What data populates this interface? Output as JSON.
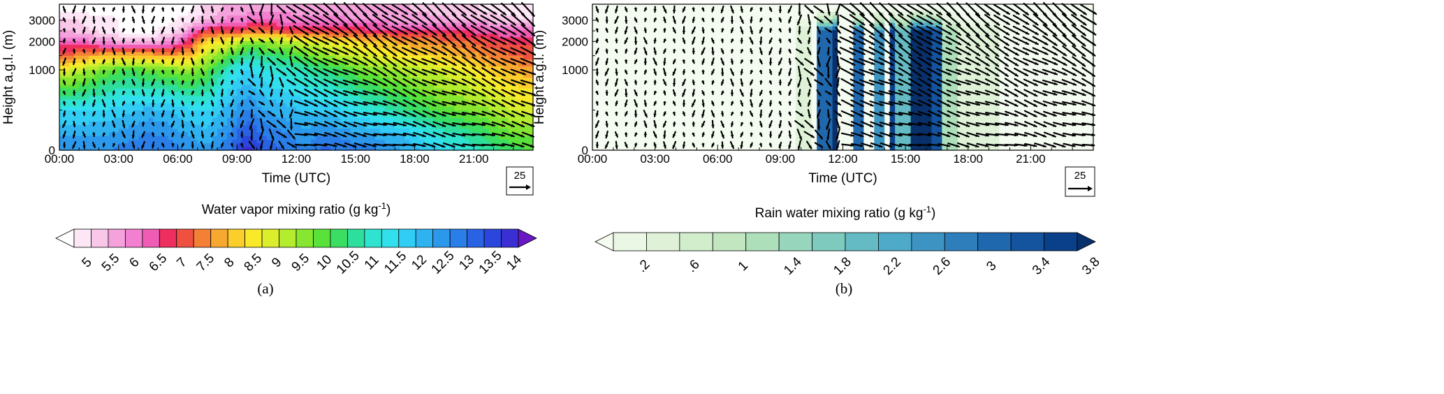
{
  "panels": [
    {
      "id": "a",
      "caption": "(a)",
      "xlabel": "Time (UTC)",
      "ylabel": "Height a.g.l. (m)",
      "xticks": [
        "00:00",
        "03:00",
        "06:00",
        "09:00",
        "12:00",
        "15:00",
        "18:00",
        "21:00"
      ],
      "yticks": [
        "0",
        "1000",
        "2000",
        "3000"
      ],
      "ref_vector_label": "25",
      "colorbar": {
        "title": "Water vapor mixing ratio (g kg",
        "title_sup": "-1",
        "title_end": ")",
        "labels": [
          "5",
          "5.5",
          "6",
          "6.5",
          "7",
          "7.5",
          "8",
          "8.5",
          "9",
          "9.5",
          "10",
          "10.5",
          "11",
          "11.5",
          "12",
          "12.5",
          "13",
          "13.5",
          "14"
        ],
        "colors": [
          "#ffffff",
          "#fde7f6",
          "#f9c7e8",
          "#f4a1dc",
          "#f27fd0",
          "#f05bb4",
          "#ef2e60",
          "#f05040",
          "#f48036",
          "#f8a830",
          "#fbce2c",
          "#f8ea2a",
          "#dbee2c",
          "#b4ec2e",
          "#86e630",
          "#5ae23a",
          "#39de62",
          "#2ede9c",
          "#2ee4d0",
          "#31e0ec",
          "#31cdf4",
          "#2fb3f0",
          "#2c98ec",
          "#2a7ee8",
          "#2a62e4",
          "#2b46dc",
          "#3a2fd2",
          "#6a18c4"
        ]
      },
      "chart_data": {
        "type": "heatmap",
        "title": "",
        "xlabel": "Time (UTC)",
        "ylabel": "Height a.g.l. (m)",
        "variable": "Water vapor mixing ratio (g kg-1)",
        "xlim_hours": [
          0,
          24
        ],
        "ylim_m": [
          0,
          3500
        ],
        "y_scale": "nonlinear (stretched upper levels)",
        "x_cols_hours": [
          0.5,
          1.5,
          2.5,
          3.5,
          4.5,
          5.5,
          6.5,
          7.5,
          8.5,
          9.5,
          10.5,
          11.5,
          12.5,
          13.5,
          14.5,
          15.5,
          16.5,
          17.5,
          18.5,
          19.5,
          20.5,
          21.5,
          22.5,
          23.5
        ],
        "y_levels_m": [
          0,
          200,
          500,
          1000,
          1500,
          2000,
          2500,
          3000,
          3300
        ],
        "values": [
          [
            12.5,
            12.5,
            12.5,
            12.8,
            12.8,
            12.8,
            12.5,
            12.3,
            12.8,
            13.8,
            13.2,
            12.8,
            12.6,
            13.0,
            12.8,
            12.8,
            12.5,
            12.2,
            11.8,
            11.5,
            11.2,
            10.8,
            10.5,
            10.2
          ],
          [
            12.2,
            12.2,
            12.2,
            12.4,
            12.6,
            12.5,
            12.2,
            12.0,
            12.5,
            13.3,
            12.8,
            12.6,
            12.3,
            12.6,
            12.4,
            12.2,
            12.0,
            11.8,
            11.4,
            11.0,
            10.8,
            10.4,
            10.0,
            9.8
          ],
          [
            11.5,
            11.5,
            11.6,
            11.8,
            12.0,
            11.9,
            11.6,
            11.5,
            12.0,
            12.6,
            12.2,
            12.0,
            11.8,
            11.8,
            11.5,
            11.2,
            10.9,
            10.6,
            10.3,
            10.0,
            9.8,
            9.6,
            9.3,
            9.0
          ],
          [
            9.0,
            9.5,
            10.0,
            10.2,
            10.0,
            9.8,
            9.6,
            10.0,
            11.0,
            11.6,
            11.2,
            11.0,
            10.8,
            10.5,
            10.2,
            9.8,
            9.6,
            9.4,
            9.2,
            9.0,
            8.8,
            8.5,
            8.2,
            8.0
          ],
          [
            7.5,
            8.0,
            8.2,
            8.3,
            8.2,
            8.0,
            8.2,
            9.2,
            10.0,
            10.8,
            10.6,
            10.3,
            10.0,
            9.6,
            9.2,
            9.0,
            8.8,
            8.6,
            8.5,
            8.3,
            8.1,
            7.8,
            7.6,
            7.4
          ],
          [
            6.5,
            6.3,
            6.0,
            5.8,
            5.8,
            6.0,
            6.8,
            8.5,
            8.8,
            9.5,
            9.5,
            9.3,
            9.0,
            8.8,
            8.6,
            8.4,
            8.2,
            8.0,
            7.8,
            7.6,
            7.6,
            7.3,
            7.1,
            7.0
          ],
          [
            5.8,
            5.5,
            5.2,
            5.0,
            5.0,
            5.2,
            6.0,
            7.2,
            7.2,
            7.4,
            7.4,
            7.3,
            7.2,
            7.1,
            7.1,
            7.0,
            7.0,
            6.9,
            6.9,
            6.8,
            6.8,
            6.7,
            6.5,
            6.5
          ],
          [
            5.5,
            5.3,
            5.2,
            5.0,
            5.0,
            5.0,
            5.3,
            5.8,
            6.2,
            6.4,
            6.5,
            6.4,
            6.3,
            6.3,
            6.2,
            6.2,
            6.1,
            6.0,
            6.0,
            5.9,
            5.8,
            5.8,
            5.6,
            5.5
          ],
          [
            5.0,
            5.0,
            5.0,
            5.0,
            5.0,
            5.0,
            5.0,
            5.5,
            5.9,
            6.0,
            6.1,
            6.0,
            6.0,
            6.0,
            5.9,
            5.9,
            5.8,
            5.8,
            5.7,
            5.6,
            5.5,
            5.4,
            5.3,
            5.2
          ]
        ]
      }
    },
    {
      "id": "b",
      "caption": "(b)",
      "xlabel": "Time (UTC)",
      "ylabel": "Height a.g.l. (m)",
      "xticks": [
        "00:00",
        "03:00",
        "06:00",
        "09:00",
        "12:00",
        "15:00",
        "18:00",
        "21:00"
      ],
      "yticks": [
        "0",
        "1000",
        "2000",
        "3000"
      ],
      "ref_vector_label": "25",
      "colorbar": {
        "title": "Rain water mixing ratio (g kg",
        "title_sup": "-1",
        "title_end": ")",
        "labels": [
          ".2",
          ".6",
          "1",
          "1.4",
          "1.8",
          "2.2",
          "2.6",
          "3",
          "3.4",
          "3.8"
        ],
        "colors": [
          "#f4fbf0",
          "#eaf7e4",
          "#dff2d8",
          "#d2edcc",
          "#c2e7c0",
          "#aedfbb",
          "#97d6bc",
          "#7ecabf",
          "#65bbc4",
          "#4fa9c8",
          "#3d94c2",
          "#2e7ebb",
          "#2068ae",
          "#14539e",
          "#0a408a",
          "#08306b"
        ]
      },
      "chart_data": {
        "type": "heatmap",
        "title": "",
        "xlabel": "Time (UTC)",
        "ylabel": "Height a.g.l. (m)",
        "variable": "Rain water mixing ratio (g kg-1)",
        "xlim_hours": [
          0,
          24
        ],
        "ylim_m": [
          0,
          3500
        ],
        "y_scale": "nonlinear (stretched upper levels)",
        "rain_columns": [
          {
            "start_hour": 9.8,
            "end_hour": 10.6,
            "max": 0.6
          },
          {
            "start_hour": 10.8,
            "end_hour": 11.4,
            "max": 3.0
          },
          {
            "start_hour": 11.4,
            "end_hour": 11.8,
            "max": 3.8
          },
          {
            "start_hour": 12.6,
            "end_hour": 12.9,
            "max": 3.0
          },
          {
            "start_hour": 13.5,
            "end_hour": 14.0,
            "max": 2.6
          },
          {
            "start_hour": 14.2,
            "end_hour": 14.5,
            "max": 3.6
          },
          {
            "start_hour": 14.5,
            "end_hour": 15.3,
            "max": 2.2
          },
          {
            "start_hour": 15.3,
            "end_hour": 16.2,
            "max": 3.8
          },
          {
            "start_hour": 16.2,
            "end_hour": 16.8,
            "max": 3.4
          },
          {
            "start_hour": 16.8,
            "end_hour": 17.6,
            "max": 1.4
          },
          {
            "start_hour": 17.6,
            "end_hour": 19.5,
            "max": 0.6
          }
        ]
      }
    }
  ]
}
